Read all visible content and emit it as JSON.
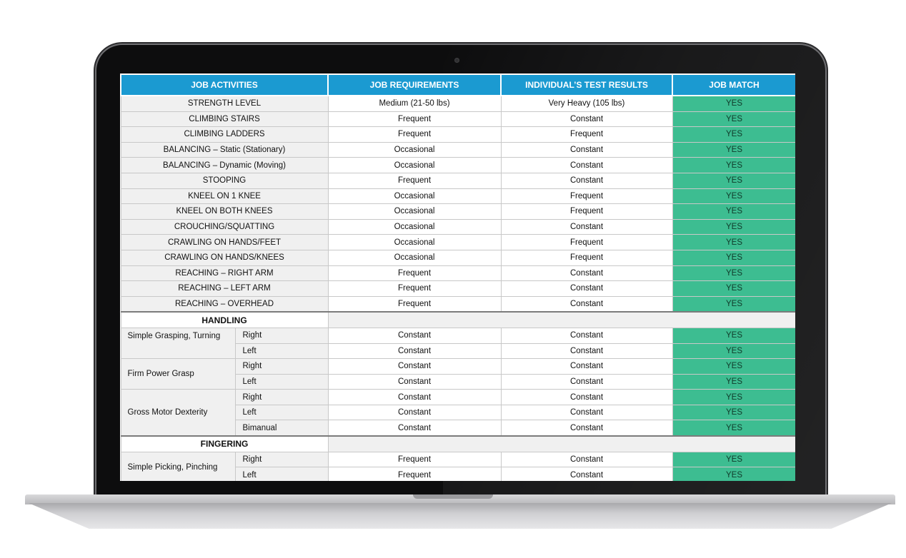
{
  "headers": {
    "activities": "JOB ACTIVITIES",
    "requirements": "JOB REQUIREMENTS",
    "results": "INDIVIDUAL’S TEST RESULTS",
    "match": "JOB MATCH"
  },
  "colors": {
    "header_bg": "#1b9ad1",
    "match_bg": "#3dbd91",
    "activity_bg": "#f0f0f0"
  },
  "rows": [
    {
      "activity": "STRENGTH LEVEL",
      "requirement": "Medium (21-50 lbs)",
      "result": "Very Heavy (105 lbs)",
      "match": "YES"
    },
    {
      "activity": "CLIMBING STAIRS",
      "requirement": "Frequent",
      "result": "Constant",
      "match": "YES"
    },
    {
      "activity": "CLIMBING LADDERS",
      "requirement": "Frequent",
      "result": "Frequent",
      "match": "YES"
    },
    {
      "activity": "BALANCING – Static (Stationary)",
      "requirement": "Occasional",
      "result": "Constant",
      "match": "YES"
    },
    {
      "activity": "BALANCING – Dynamic (Moving)",
      "requirement": "Occasional",
      "result": "Constant",
      "match": "YES"
    },
    {
      "activity": "STOOPING",
      "requirement": "Frequent",
      "result": "Constant",
      "match": "YES"
    },
    {
      "activity": "KNEEL ON 1 KNEE",
      "requirement": "Occasional",
      "result": "Frequent",
      "match": "YES"
    },
    {
      "activity": "KNEEL ON BOTH KNEES",
      "requirement": "Occasional",
      "result": "Frequent",
      "match": "YES"
    },
    {
      "activity": "CROUCHING/SQUATTING",
      "requirement": "Occasional",
      "result": "Constant",
      "match": "YES"
    },
    {
      "activity": "CRAWLING ON HANDS/FEET",
      "requirement": "Occasional",
      "result": "Frequent",
      "match": "YES"
    },
    {
      "activity": "CRAWLING ON HANDS/KNEES",
      "requirement": "Occasional",
      "result": "Frequent",
      "match": "YES"
    },
    {
      "activity": "REACHING – RIGHT ARM",
      "requirement": "Frequent",
      "result": "Constant",
      "match": "YES"
    },
    {
      "activity": "REACHING – LEFT ARM",
      "requirement": "Frequent",
      "result": "Constant",
      "match": "YES"
    },
    {
      "activity": "REACHING – OVERHEAD",
      "requirement": "Frequent",
      "result": "Constant",
      "match": "YES"
    }
  ],
  "handling": {
    "title": "HANDLING",
    "groups": [
      {
        "label": "Simple Grasping, Turning",
        "rows": [
          {
            "side": "Right",
            "requirement": "Constant",
            "result": "Constant",
            "match": "YES"
          },
          {
            "side": "Left",
            "requirement": "Constant",
            "result": "Constant",
            "match": "YES"
          }
        ]
      },
      {
        "label": "Firm Power Grasp",
        "rows": [
          {
            "side": "Right",
            "requirement": "Constant",
            "result": "Constant",
            "match": "YES"
          },
          {
            "side": "Left",
            "requirement": "Constant",
            "result": "Constant",
            "match": "YES"
          }
        ]
      },
      {
        "label": "Gross Motor Dexterity",
        "rows": [
          {
            "side": "Right",
            "requirement": "Constant",
            "result": "Constant",
            "match": "YES"
          },
          {
            "side": "Left",
            "requirement": "Constant",
            "result": "Constant",
            "match": "YES"
          },
          {
            "side": "Bimanual",
            "requirement": "Constant",
            "result": "Constant",
            "match": "YES"
          }
        ]
      }
    ]
  },
  "fingering": {
    "title": "FINGERING",
    "groups": [
      {
        "label": "Simple Picking, Pinching",
        "rows": [
          {
            "side": "Right",
            "requirement": "Frequent",
            "result": "Constant",
            "match": "YES"
          },
          {
            "side": "Left",
            "requirement": "Frequent",
            "result": "Constant",
            "match": "YES"
          }
        ]
      }
    ]
  }
}
